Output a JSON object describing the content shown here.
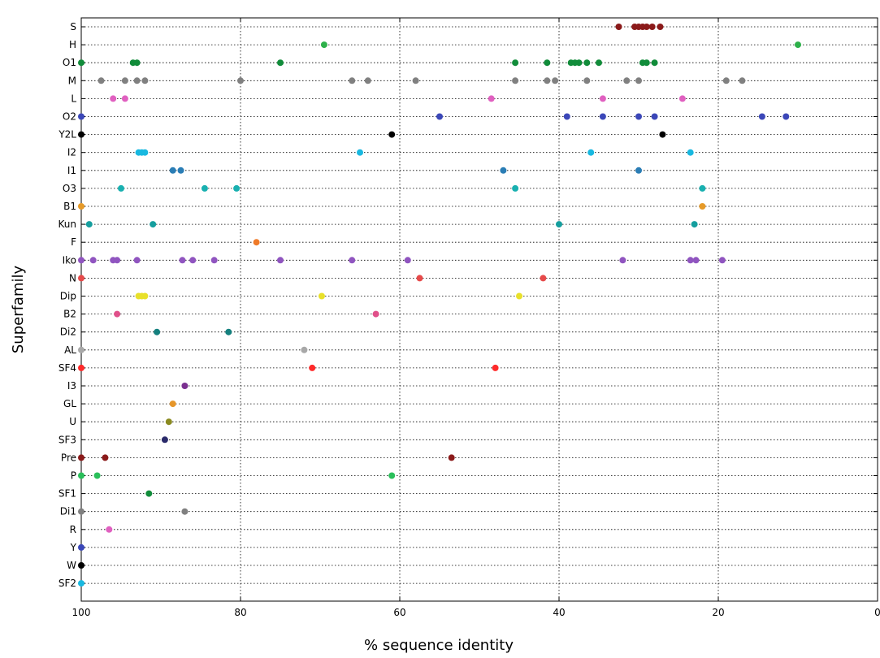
{
  "chart_data": {
    "type": "scatter",
    "title": "",
    "xlabel": "% sequence identity",
    "ylabel": "Superfamily",
    "xlim": [
      100,
      0
    ],
    "xticks": [
      100,
      80,
      60,
      40,
      20,
      0
    ],
    "grid": {
      "x": true,
      "y": true,
      "style": "dotted"
    },
    "categories": [
      "S",
      "H",
      "O1",
      "M",
      "L",
      "O2",
      "Y2L",
      "I2",
      "I1",
      "O3",
      "B1",
      "Kun",
      "F",
      "Iko",
      "N",
      "Dip",
      "B2",
      "Di2",
      "AL",
      "SF4",
      "I3",
      "GL",
      "U",
      "SF3",
      "Pre",
      "P",
      "SF1",
      "Di1",
      "R",
      "Y",
      "W",
      "SF2"
    ],
    "series": [
      {
        "category": "S",
        "color": "#8b1a1a",
        "values": [
          32.5,
          30.5,
          30,
          29.5,
          29,
          28.3,
          27.3
        ]
      },
      {
        "category": "H",
        "color": "#2db04a",
        "values": [
          69.5,
          10
        ]
      },
      {
        "category": "O1",
        "color": "#118c3a",
        "values": [
          100,
          93.5,
          93,
          75,
          45.5,
          41.5,
          38.5,
          38,
          37.5,
          36.5,
          35,
          29.5,
          29,
          28
        ]
      },
      {
        "category": "M",
        "color": "#808080",
        "values": [
          97.5,
          94.5,
          93,
          92,
          80,
          66,
          64,
          58,
          45.5,
          41.5,
          40.5,
          36.5,
          31.5,
          30,
          19,
          17
        ]
      },
      {
        "category": "L",
        "color": "#e060c0",
        "values": [
          96,
          94.5,
          48.5,
          34.5,
          24.5
        ]
      },
      {
        "category": "O2",
        "color": "#3b47b8",
        "values": [
          100,
          55,
          39,
          34.5,
          30,
          28,
          14.5,
          11.5
        ]
      },
      {
        "category": "Y2L",
        "color": "#000000",
        "values": [
          100,
          61,
          27
        ]
      },
      {
        "category": "I2",
        "color": "#18b8e0",
        "values": [
          92.8,
          92.4,
          92,
          65,
          36,
          23.5
        ]
      },
      {
        "category": "I1",
        "color": "#2a7db5",
        "values": [
          88.5,
          87.5,
          47,
          30
        ]
      },
      {
        "category": "O3",
        "color": "#19b0b0",
        "values": [
          95,
          84.5,
          80.5,
          45.5,
          22
        ]
      },
      {
        "category": "B1",
        "color": "#e69a28",
        "values": [
          100,
          22
        ]
      },
      {
        "category": "Kun",
        "color": "#159e9e",
        "values": [
          99,
          91,
          40,
          23
        ]
      },
      {
        "category": "F",
        "color": "#ef7a28",
        "values": [
          78
        ]
      },
      {
        "category": "Iko",
        "color": "#9055c0",
        "values": [
          100,
          98.5,
          96,
          95.5,
          93,
          87.3,
          86,
          83.3,
          75,
          66,
          59,
          32,
          23.5,
          22.8,
          19.5
        ]
      },
      {
        "category": "N",
        "color": "#e64a4a",
        "values": [
          100,
          57.5,
          42
        ]
      },
      {
        "category": "Dip",
        "color": "#e8e02a",
        "values": [
          92.8,
          92.4,
          92,
          69.8,
          45
        ]
      },
      {
        "category": "B2",
        "color": "#e0508a",
        "values": [
          95.5,
          63
        ]
      },
      {
        "category": "Di2",
        "color": "#14807e",
        "values": [
          90.5,
          81.5
        ]
      },
      {
        "category": "AL",
        "color": "#a8a8a8",
        "values": [
          100,
          72
        ]
      },
      {
        "category": "SF4",
        "color": "#ff2a2a",
        "values": [
          100,
          71,
          48
        ]
      },
      {
        "category": "I3",
        "color": "#7a3090",
        "values": [
          87
        ]
      },
      {
        "category": "GL",
        "color": "#e6962a",
        "values": [
          88.5
        ]
      },
      {
        "category": "U",
        "color": "#8a8a20",
        "values": [
          89
        ]
      },
      {
        "category": "SF3",
        "color": "#2a2a6a",
        "values": [
          89.5
        ]
      },
      {
        "category": "Pre",
        "color": "#8b1a1a",
        "values": [
          100,
          97,
          53.5
        ]
      },
      {
        "category": "P",
        "color": "#2abf5a",
        "values": [
          100,
          98,
          61
        ]
      },
      {
        "category": "SF1",
        "color": "#118c3a",
        "values": [
          91.5
        ]
      },
      {
        "category": "Di1",
        "color": "#808080",
        "values": [
          100,
          87
        ]
      },
      {
        "category": "R",
        "color": "#e060c0",
        "values": [
          96.5
        ]
      },
      {
        "category": "Y",
        "color": "#3b47b8",
        "values": [
          100
        ]
      },
      {
        "category": "W",
        "color": "#000000",
        "values": [
          100
        ]
      },
      {
        "category": "SF2",
        "color": "#18b8e0",
        "values": [
          100
        ]
      }
    ]
  }
}
